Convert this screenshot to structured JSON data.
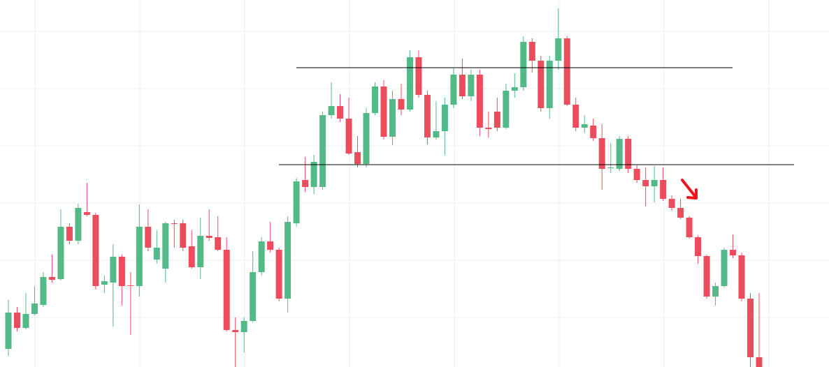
{
  "chart_data": {
    "type": "candlestick",
    "ylim": [
      0,
      526
    ],
    "up_color": "#53b987",
    "down_color": "#eb4d5c",
    "level_color": "#000000",
    "levels": [
      429,
      290
    ],
    "open": [
      26,
      78,
      56,
      76,
      89,
      129,
      126,
      201,
      181,
      222,
      218,
      118,
      121,
      158,
      117,
      116,
      201,
      154,
      141,
      206,
      206,
      173,
      143,
      188,
      186,
      168,
      53,
      50,
      66,
      136,
      180,
      168,
      98,
      206,
      268,
      258,
      258,
      361,
      374,
      356,
      308,
      291,
      364,
      402,
      330,
      384,
      369,
      444,
      390,
      329,
      338,
      376,
      419,
      388,
      419,
      343,
      366,
      343,
      396,
      401,
      466,
      439,
      371,
      439,
      471,
      376,
      343,
      346,
      328,
      285,
      284,
      327,
      284,
      268,
      259,
      268,
      241,
      228,
      214,
      186,
      159,
      101,
      116,
      168,
      160,
      98,
      14
    ],
    "high": [
      96,
      86,
      106,
      116,
      136,
      161,
      226,
      206,
      234,
      264,
      221,
      131,
      176,
      161,
      136,
      233,
      226,
      196,
      208,
      211,
      211,
      196,
      214,
      226,
      216,
      186,
      71,
      71,
      166,
      186,
      208,
      171,
      216,
      271,
      301,
      304,
      366,
      408,
      391,
      386,
      331,
      371,
      408,
      411,
      396,
      406,
      454,
      454,
      396,
      381,
      386,
      428,
      442,
      426,
      426,
      366,
      386,
      406,
      421,
      474,
      471,
      446,
      446,
      514,
      474,
      386,
      361,
      356,
      348,
      321,
      331,
      331,
      289,
      286,
      288,
      286,
      246,
      241,
      216,
      188,
      161,
      121,
      171,
      190,
      164,
      106,
      106
    ],
    "low": [
      16,
      51,
      54,
      74,
      86,
      121,
      124,
      176,
      176,
      216,
      111,
      106,
      58,
      88,
      46,
      101,
      166,
      148,
      121,
      171,
      166,
      141,
      126,
      181,
      166,
      51,
      0,
      21,
      64,
      131,
      164,
      94,
      78,
      201,
      251,
      248,
      254,
      356,
      351,
      304,
      286,
      286,
      361,
      326,
      318,
      361,
      366,
      386,
      319,
      326,
      304,
      371,
      384,
      381,
      331,
      329,
      338,
      341,
      386,
      396,
      422,
      366,
      356,
      426,
      374,
      338,
      336,
      324,
      254,
      278,
      281,
      278,
      264,
      230,
      236,
      238,
      224,
      212,
      184,
      148,
      98,
      88,
      114,
      156,
      94,
      0,
      0
    ],
    "close": [
      78,
      56,
      76,
      91,
      129,
      125,
      201,
      181,
      228,
      218,
      116,
      123,
      158,
      116,
      116,
      201,
      171,
      171,
      206,
      205,
      171,
      143,
      188,
      185,
      168,
      53,
      50,
      66,
      136,
      180,
      168,
      98,
      208,
      266,
      258,
      294,
      361,
      374,
      356,
      306,
      291,
      364,
      402,
      330,
      384,
      369,
      444,
      390,
      329,
      338,
      376,
      419,
      388,
      419,
      343,
      341,
      343,
      396,
      401,
      466,
      439,
      371,
      439,
      471,
      376,
      343,
      348,
      328,
      284,
      286,
      327,
      284,
      268,
      259,
      268,
      241,
      228,
      214,
      186,
      159,
      101,
      116,
      168,
      160,
      98,
      14,
      0
    ]
  }
}
